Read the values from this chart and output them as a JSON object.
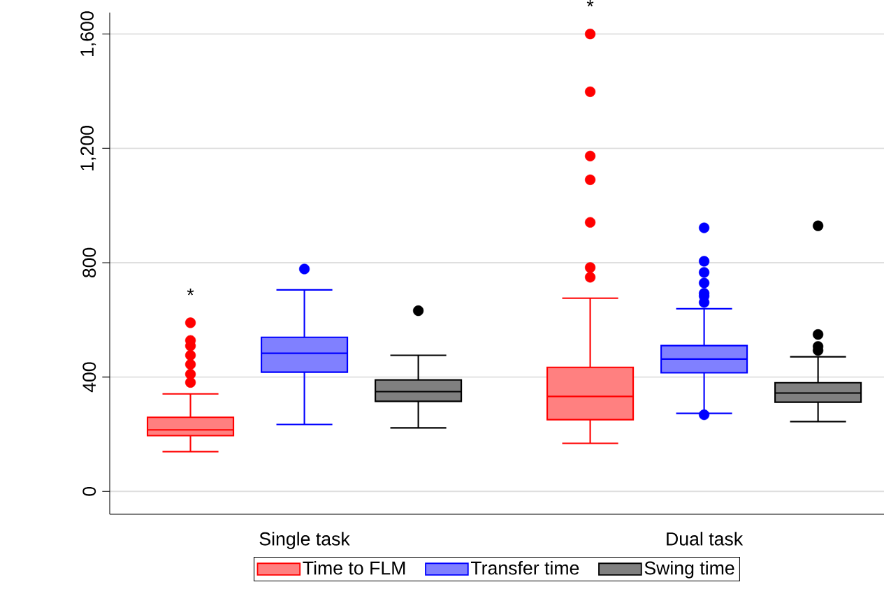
{
  "chart_data": {
    "type": "box",
    "categories": [
      "Single task",
      "Dual task"
    ],
    "ylim": [
      -80,
      1675
    ],
    "yticks": [
      0,
      {
        "value": 400,
        "label": "400"
      },
      {
        "value": 800,
        "label": "800"
      },
      {
        "value": 1200,
        "label": "1,200"
      },
      {
        "value": 1600,
        "label": "1,600"
      }
    ],
    "grid": "y",
    "legend": "bottom",
    "series": [
      {
        "name": "Time to FLM",
        "color": "#ff0000",
        "boxes": [
          {
            "low": 139,
            "q1": 195,
            "median": 215,
            "q3": 259,
            "high": 341,
            "outliers": [
              381,
              410,
              444,
              476,
              509,
              528,
              590
            ]
          },
          {
            "low": 168,
            "q1": 251,
            "median": 332,
            "q3": 434,
            "high": 676,
            "outliers": [
              749,
              783,
              941,
              1090,
              1173,
              1398,
              1600
            ]
          }
        ]
      },
      {
        "name": "Transfer time",
        "color": "#0000ff",
        "boxes": [
          {
            "low": 234,
            "q1": 417,
            "median": 483,
            "q3": 539,
            "high": 705,
            "outliers": [
              778
            ]
          },
          {
            "low": 273,
            "q1": 415,
            "median": 463,
            "q3": 510,
            "high": 639,
            "outliers": [
              268,
              661,
              683,
              693,
              729,
              766,
              805,
              922
            ]
          }
        ]
      },
      {
        "name": "Swing time",
        "color": "#000000",
        "boxes": [
          {
            "low": 222,
            "q1": 315,
            "median": 349,
            "q3": 390,
            "high": 476,
            "outliers": [
              632
            ]
          },
          {
            "low": 244,
            "q1": 312,
            "median": 344,
            "q3": 380,
            "high": 471,
            "outliers": [
              493,
              507,
              549,
              929
            ]
          }
        ]
      }
    ],
    "annotations": [
      "*",
      "*"
    ]
  }
}
